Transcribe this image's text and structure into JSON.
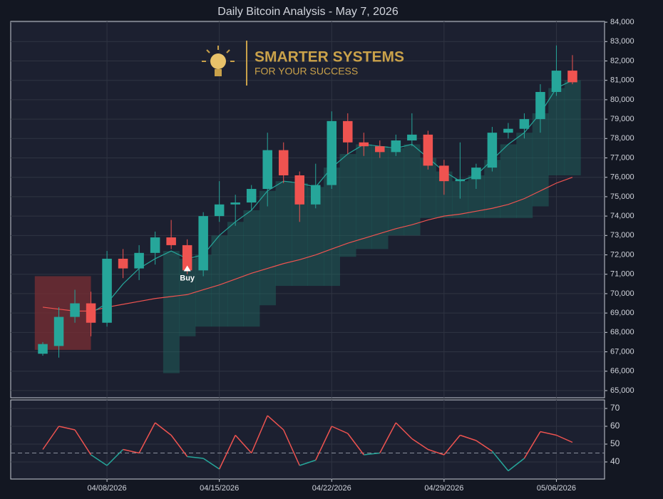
{
  "chart_data": [
    {
      "type": "candlestick",
      "title": "Daily Bitcoin Analysis - May 7, 2026",
      "x": [
        "2026-04-04",
        "2026-04-05",
        "2026-04-06",
        "2026-04-07",
        "2026-04-08",
        "2026-04-09",
        "2026-04-10",
        "2026-04-11",
        "2026-04-12",
        "2026-04-13",
        "2026-04-14",
        "2026-04-15",
        "2026-04-16",
        "2026-04-17",
        "2026-04-18",
        "2026-04-19",
        "2026-04-20",
        "2026-04-21",
        "2026-04-22",
        "2026-04-23",
        "2026-04-24",
        "2026-04-25",
        "2026-04-26",
        "2026-04-27",
        "2026-04-28",
        "2026-04-29",
        "2026-04-30",
        "2026-05-01",
        "2026-05-02",
        "2026-05-03",
        "2026-05-04",
        "2026-05-05",
        "2026-05-06",
        "2026-05-07"
      ],
      "open": [
        66900,
        67300,
        68800,
        69500,
        68500,
        71800,
        71300,
        72100,
        72900,
        72500,
        71200,
        74000,
        74600,
        74700,
        75400,
        77400,
        76100,
        74600,
        75600,
        78900,
        77800,
        77600,
        77300,
        77900,
        78200,
        76600,
        75800,
        75900,
        76500,
        78300,
        78500,
        79000,
        80400,
        81500
      ],
      "high": [
        67500,
        69300,
        70200,
        70100,
        72200,
        72300,
        72500,
        73200,
        73800,
        72800,
        74200,
        75800,
        75100,
        75600,
        78300,
        77800,
        76300,
        76700,
        79400,
        79300,
        78300,
        77900,
        78200,
        79300,
        78400,
        76900,
        77800,
        76700,
        78600,
        78800,
        79300,
        80800,
        82800,
        82300
      ],
      "low": [
        66800,
        66700,
        68500,
        67800,
        68300,
        70800,
        70700,
        71500,
        72300,
        71000,
        70900,
        73700,
        73500,
        74300,
        74500,
        75700,
        73700,
        74400,
        75400,
        77200,
        77100,
        77000,
        77100,
        77600,
        76400,
        75100,
        74900,
        75400,
        76300,
        78000,
        78000,
        78300,
        80200,
        80800
      ],
      "close": [
        67400,
        68800,
        69500,
        68500,
        71800,
        71300,
        72100,
        72900,
        72500,
        71200,
        74000,
        74600,
        74700,
        75400,
        77400,
        76100,
        74600,
        75600,
        78900,
        77800,
        77600,
        77300,
        77900,
        78200,
        76600,
        75800,
        75900,
        76500,
        78300,
        78500,
        79000,
        80400,
        81500,
        80900
      ],
      "colors": {
        "up": "#26a69a",
        "down": "#ef5350"
      },
      "series": [
        {
          "color": "#26a69a",
          "values": [
            null,
            null,
            null,
            69000,
            69500,
            70500,
            71300,
            71800,
            72200,
            71800,
            72000,
            73000,
            73700,
            74300,
            75300,
            75800,
            75700,
            75500,
            76500,
            77200,
            77700,
            77600,
            77500,
            77700,
            77000,
            76300,
            75800,
            76100,
            76900,
            77700,
            78300,
            79300,
            80600,
            81000
          ]
        },
        {
          "color": "#ef5350",
          "values": [
            69300,
            69200,
            69100,
            69100,
            69300,
            69450,
            69600,
            69750,
            69850,
            69950,
            70200,
            70450,
            70750,
            71050,
            71300,
            71550,
            71750,
            72000,
            72300,
            72600,
            72850,
            73100,
            73350,
            73550,
            73800,
            74000,
            74100,
            74250,
            74400,
            74600,
            74900,
            75300,
            75700,
            76000
          ]
        },
        {
          "color": "#1f6b62",
          "values": [
            null,
            null,
            null,
            null,
            null,
            null,
            null,
            null,
            65900,
            67800,
            68300,
            68300,
            68300,
            68300,
            69400,
            70400,
            70400,
            70400,
            70400,
            71900,
            72300,
            72300,
            73000,
            73000,
            73900,
            73900,
            73900,
            73900,
            73900,
            73900,
            73900,
            74500,
            76100,
            76100
          ]
        }
      ],
      "zone": {
        "x": [
          "2026-04-04",
          "2026-04-07"
        ],
        "y": [
          67100,
          70900
        ],
        "color": "#7a2e33"
      },
      "annotation": {
        "text": "Buy",
        "x": "2026-04-13",
        "y": 71300
      },
      "xlim": [
        "2026-04-02",
        "2026-05-09"
      ],
      "xticks": [
        {
          "value": "2026-04-08",
          "label": "04/08/2026"
        },
        {
          "value": "2026-04-15",
          "label": "04/15/2026"
        },
        {
          "value": "2026-04-22",
          "label": "04/22/2026"
        },
        {
          "value": "2026-04-29",
          "label": "04/29/2026"
        },
        {
          "value": "2026-05-06",
          "label": "05/06/2026"
        }
      ],
      "ylim": [
        64630,
        84040
      ],
      "yticks": [
        {
          "value": 65000,
          "label": "65,000"
        },
        {
          "value": 66000,
          "label": "66,000"
        },
        {
          "value": 67000,
          "label": "67,000"
        },
        {
          "value": 68000,
          "label": "68,000"
        },
        {
          "value": 69000,
          "label": "69,000"
        },
        {
          "value": 70000,
          "label": "70,000"
        },
        {
          "value": 71000,
          "label": "71,000"
        },
        {
          "value": 72000,
          "label": "72,000"
        },
        {
          "value": 73000,
          "label": "73,000"
        },
        {
          "value": 74000,
          "label": "74,000"
        },
        {
          "value": 75000,
          "label": "75,000"
        },
        {
          "value": 76000,
          "label": "76,000"
        },
        {
          "value": 77000,
          "label": "77,000"
        },
        {
          "value": 78000,
          "label": "78,000"
        },
        {
          "value": 79000,
          "label": "79,000"
        },
        {
          "value": 80000,
          "label": "80,000"
        },
        {
          "value": 81000,
          "label": "81,000"
        },
        {
          "value": 82000,
          "label": "82,000"
        },
        {
          "value": 83000,
          "label": "83,000"
        },
        {
          "value": 84000,
          "label": "84,000"
        }
      ],
      "grid": true
    },
    {
      "type": "line",
      "values": [
        47,
        60,
        58,
        44,
        38,
        47,
        45,
        62,
        55,
        43,
        42,
        36,
        55,
        45,
        66,
        58,
        38,
        41,
        60,
        56,
        44,
        45,
        62,
        53,
        47,
        44,
        55,
        52,
        46,
        35,
        42,
        57,
        55,
        51
      ],
      "threshold": 45,
      "colors": {
        "above": "#ef5350",
        "below": "#26a69a"
      },
      "ylim": [
        30.4,
        74.8
      ],
      "yticks": [
        40,
        50,
        60,
        70
      ],
      "grid": true
    }
  ],
  "logo": {
    "title": "SMARTER SYSTEMS",
    "subtitle": "FOR YOUR SUCCESS"
  }
}
